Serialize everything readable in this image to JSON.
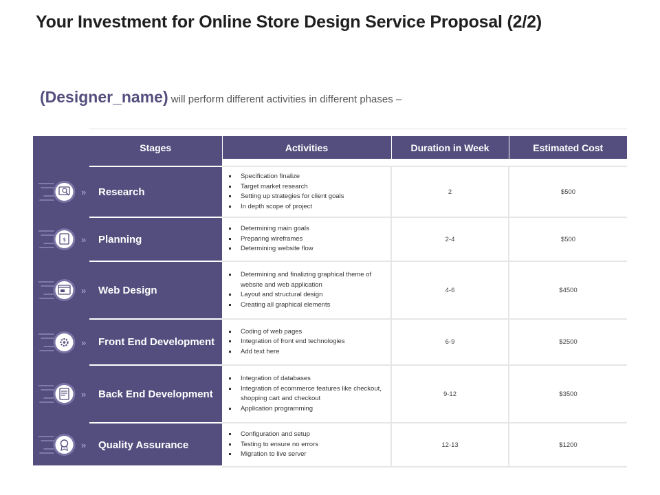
{
  "title": "Your Investment for Online Store Design Service Proposal (2/2)",
  "subtitle": {
    "name": "(Designer_name)",
    "text": " will perform different activities in different phases –"
  },
  "table": {
    "headers": {
      "stages": "Stages",
      "activities": "Activities",
      "duration": "Duration in Week",
      "cost": "Estimated Cost"
    },
    "rows": [
      {
        "stage": "Research",
        "icon": "magnifier-chart-icon",
        "activities": [
          "Specification finalize",
          "Target market research",
          "Setting up strategies for client goals",
          "In depth scope of project"
        ],
        "duration": "2",
        "cost": "$500"
      },
      {
        "stage": "Planning",
        "icon": "planning-board-icon",
        "activities": [
          "Determining main goals",
          "Preparing wireframes",
          "Determining website flow"
        ],
        "duration": "2-4",
        "cost": "$500"
      },
      {
        "stage": "Web Design",
        "icon": "browser-window-icon",
        "activities": [
          "Determining and finalizing graphical theme of website and web application",
          "Layout and structural design",
          "Creating all graphical elements"
        ],
        "duration": "4-6",
        "cost": "$4500"
      },
      {
        "stage": "Front End Development",
        "icon": "gear-code-icon",
        "activities": [
          "Coding of web pages",
          "Integration of front end technologies",
          "Add text here"
        ],
        "duration": "6-9",
        "cost": "$2500"
      },
      {
        "stage": "Back End Development",
        "icon": "server-document-icon",
        "activities": [
          "Integration of databases",
          "Integration of ecommerce features like checkout, shopping cart and checkout",
          "Application programming"
        ],
        "duration": "9-12",
        "cost": "$3500"
      },
      {
        "stage": "Quality Assurance",
        "icon": "quality-badge-icon",
        "activities": [
          "Configuration and setup",
          "Testing to ensure no errors",
          "Migration to live server"
        ],
        "duration": "12-13",
        "cost": "$1200"
      }
    ]
  },
  "colors": {
    "accent": "#544e7e",
    "icon_circle": "#ffffff",
    "icon_stroke": "#544e7e",
    "speed_lines": "#8e89b5",
    "chevron": "#b8b3d6"
  }
}
